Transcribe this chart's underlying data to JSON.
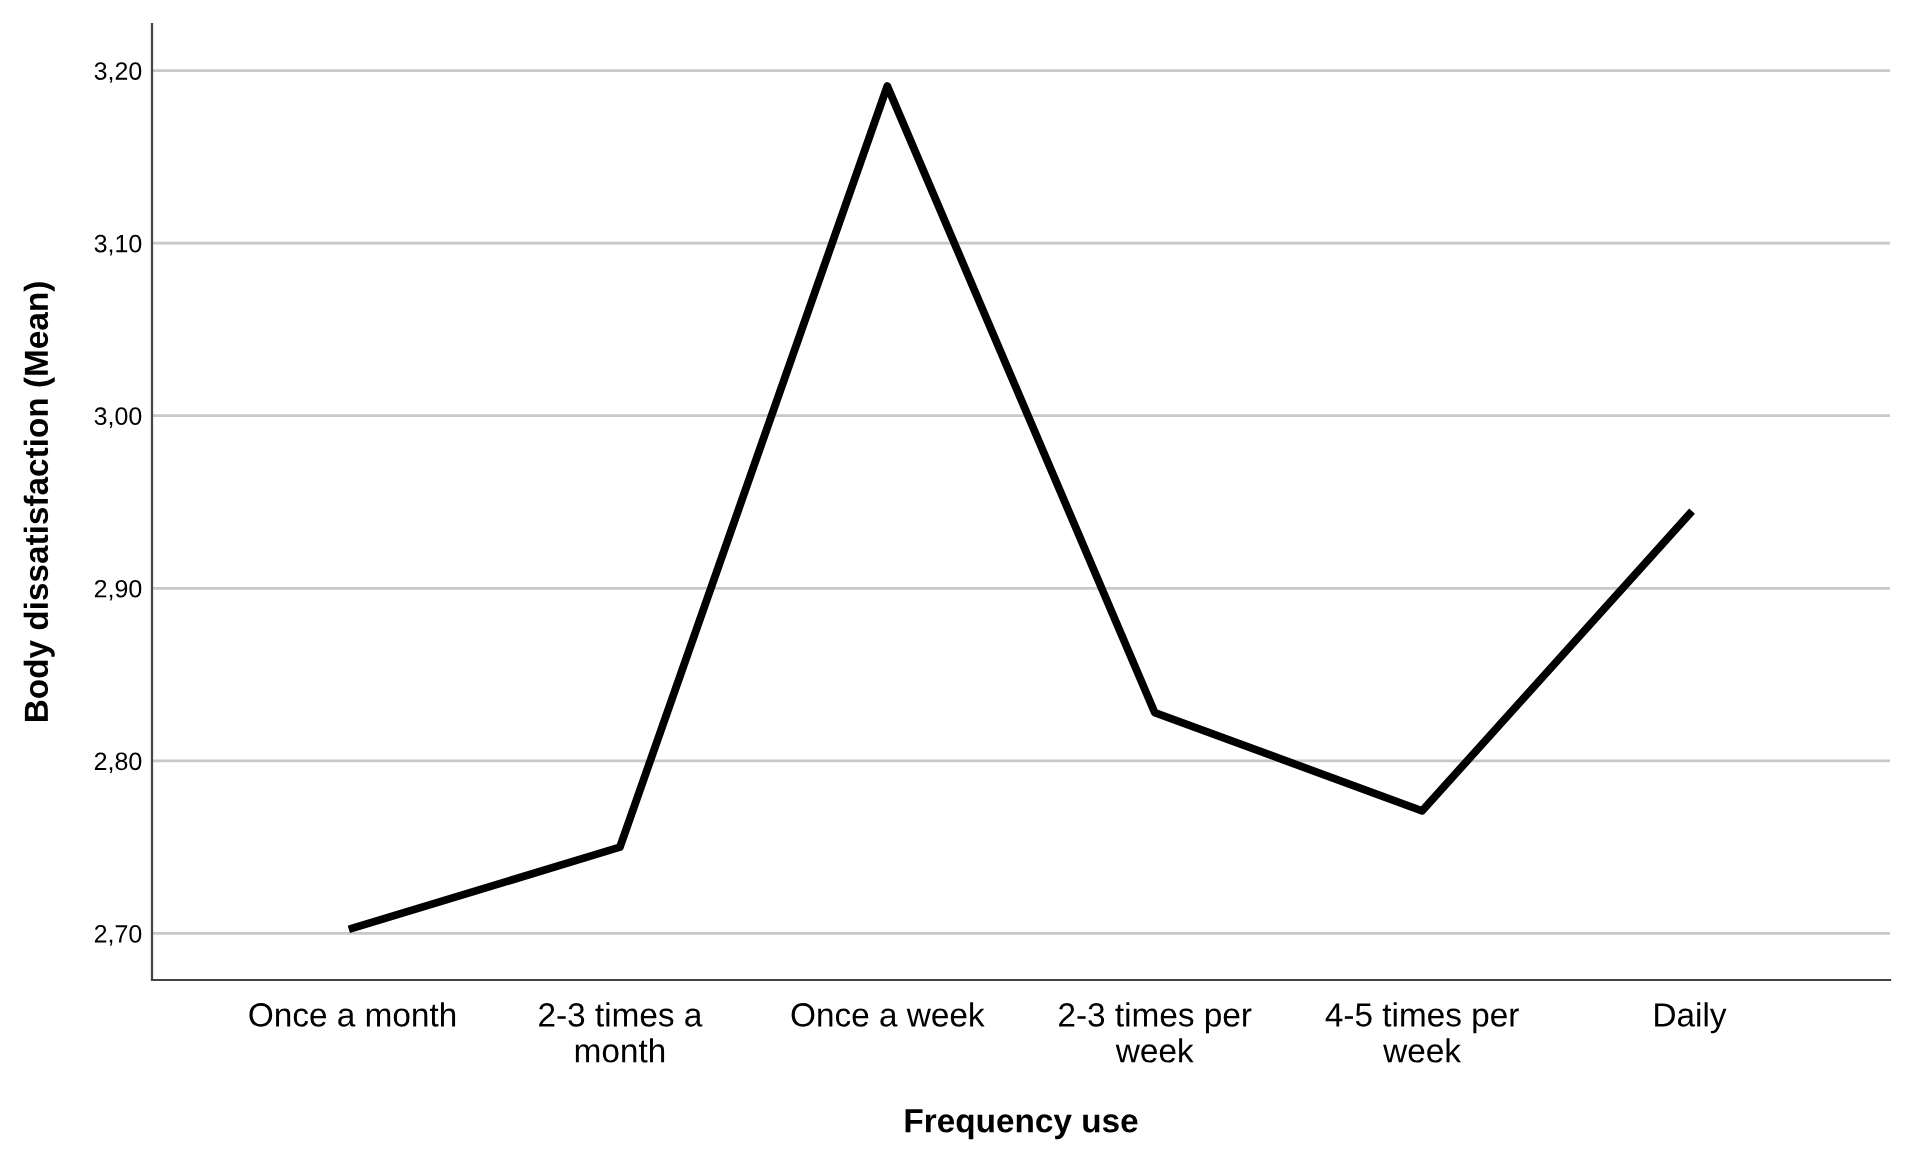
{
  "chart_data": {
    "type": "line",
    "xlabel": "Frequency use",
    "ylabel": "Body dissatisfaction (Mean)",
    "categories": [
      "Once a month",
      "2-3 times a\nmonth",
      "Once a week",
      "2-3 times per\nweek",
      "4-5 times per\nweek",
      "Daily"
    ],
    "series": [
      {
        "color": "#000000",
        "values": [
          2.703,
          2.75,
          3.191,
          2.828,
          2.771,
          2.943
        ]
      }
    ],
    "ylim": [
      2.673,
      3.227
    ],
    "yticks": [
      {
        "value": 2.7,
        "label": "2,70"
      },
      {
        "value": 2.8,
        "label": "2,80"
      },
      {
        "value": 2.9,
        "label": "2,90"
      },
      {
        "value": 3.0,
        "label": "3,00"
      },
      {
        "value": 3.1,
        "label": "3,10"
      },
      {
        "value": 3.2,
        "label": "3,20"
      }
    ],
    "grid": "y",
    "line_style": "solid",
    "marker": "none",
    "legend": false
  }
}
